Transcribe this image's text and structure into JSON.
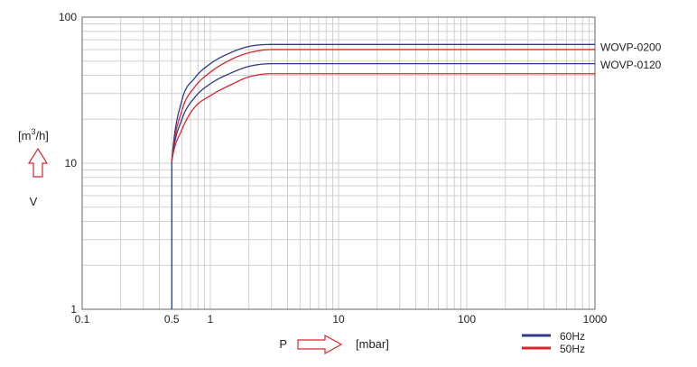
{
  "chart_data": {
    "type": "line",
    "xscale": "log",
    "yscale": "log",
    "xlim": [
      0.1,
      1000
    ],
    "ylim": [
      1,
      100
    ],
    "grid": true,
    "x_ticks": [
      "0.1",
      "0.5",
      "1",
      "10",
      "100",
      "1000"
    ],
    "x_tick_values": [
      0.1,
      0.5,
      1,
      10,
      100,
      1000
    ],
    "y_ticks": [
      "100",
      "10",
      "1"
    ],
    "y_tick_values": [
      100,
      10,
      1
    ],
    "xlabel": "P",
    "xunit": "[mbar]",
    "ylabel": "V",
    "yunit_base": "[m",
    "yunit_exp": "3",
    "yunit_tail": "/h]",
    "colors": {
      "60Hz": "#2e3a8c",
      "50Hz": "#d9272e",
      "grid": "#cfcfcf",
      "arrow": "#d9272e"
    },
    "legend": {
      "placement": "bottom-right",
      "entries": [
        {
          "label": "60Hz",
          "color": "#2e3a8c"
        },
        {
          "label": "50Hz",
          "color": "#d9272e"
        }
      ]
    },
    "series": [
      {
        "model": "WOVP-0200",
        "freq": "60Hz",
        "color": "#2e3a8c",
        "x": [
          0.5,
          0.6,
          0.75,
          1,
          1.5,
          2,
          3,
          10,
          100,
          1000
        ],
        "y": [
          10.3,
          27,
          38,
          48,
          58,
          63,
          65,
          65,
          65,
          65
        ]
      },
      {
        "model": "WOVP-0200",
        "freq": "50Hz",
        "color": "#d9272e",
        "x": [
          0.5,
          0.6,
          0.75,
          1,
          1.5,
          2,
          3,
          10,
          100,
          1000
        ],
        "y": [
          10.3,
          23,
          33,
          42,
          52,
          57,
          60,
          60,
          60,
          60
        ]
      },
      {
        "model": "WOVP-0120",
        "freq": "60Hz",
        "color": "#2e3a8c",
        "x": [
          0.5,
          0.6,
          0.75,
          1,
          1.5,
          2,
          3,
          10,
          100,
          1000
        ],
        "y": [
          10.3,
          20,
          28,
          35,
          42,
          46,
          48,
          48,
          48,
          48
        ]
      },
      {
        "model": "WOVP-0120",
        "freq": "50Hz",
        "color": "#d9272e",
        "x": [
          0.5,
          0.6,
          0.75,
          1,
          1.5,
          2,
          3,
          10,
          100,
          1000
        ],
        "y": [
          10.3,
          17,
          24,
          29,
          35,
          39,
          41,
          41,
          41,
          41
        ]
      }
    ],
    "series_labels": [
      {
        "text": "WOVP-0200",
        "at_y": 62
      },
      {
        "text": "WOVP-0120",
        "at_y": 47
      }
    ],
    "vertical_segment": {
      "x": 0.5,
      "y": [
        1,
        10.3
      ]
    }
  }
}
